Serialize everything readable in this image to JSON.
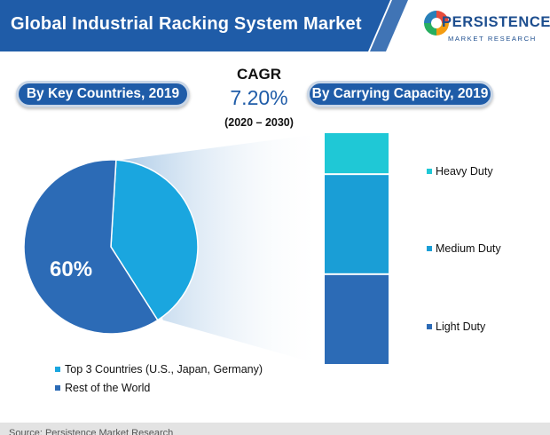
{
  "header": {
    "title": "Global Industrial Racking System Market",
    "brand_name": "PERSISTENCE",
    "brand_tagline": "MARKET RESEARCH",
    "title_bg": "#1f5ca8"
  },
  "cagr": {
    "label": "CAGR",
    "value": "7.20%",
    "period": "(2020 – 2030)"
  },
  "pills": {
    "left": "By Key Countries, 2019",
    "right": "By Carrying Capacity, 2019"
  },
  "chart_data": [
    {
      "type": "pie",
      "title": "By Key Countries, 2019",
      "slices": [
        {
          "name": "Top 3 Countries (U.S., Japan, Germany)",
          "value": 40,
          "color": "#1aa6df"
        },
        {
          "name": "Rest of the World",
          "value": 60,
          "color": "#2c6bb6",
          "label": "60%"
        }
      ],
      "legend_position": "bottom-left"
    },
    {
      "type": "bar",
      "stacked": true,
      "title": "By Carrying Capacity, 2019",
      "series": [
        {
          "name": "Heavy Duty",
          "value": 18,
          "color": "#1fc8d6"
        },
        {
          "name": "Medium Duty",
          "value": 43,
          "color": "#1a9ed6"
        },
        {
          "name": "Light Duty",
          "value": 39,
          "color": "#2c6bb6"
        }
      ],
      "legend_position": "right"
    }
  ],
  "footer": {
    "text": "Source: Persistence Market Research"
  }
}
